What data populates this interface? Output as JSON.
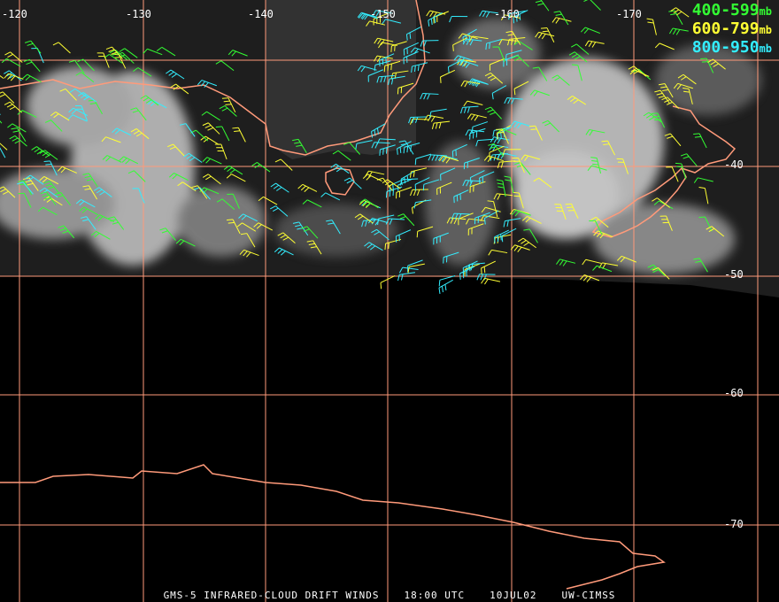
{
  "colors": {
    "grid": "#ff9a7a",
    "coast": "#ff9a7a",
    "cloud": "#d8d8d8",
    "background": "#000000",
    "level_400_599": "#33ff33",
    "level_600_799": "#ffff33",
    "level_800_950": "#33eeff"
  },
  "legend": {
    "items": [
      {
        "label": "400-599",
        "unit": "mb",
        "color": "#33ff33"
      },
      {
        "label": "600-799",
        "unit": "mb",
        "color": "#ffff33"
      },
      {
        "label": "800-950",
        "unit": "mb",
        "color": "#33eeff"
      }
    ]
  },
  "longitude_labels": [
    "-120",
    "-130",
    "-140",
    "-150",
    "-160",
    "-170"
  ],
  "latitude_labels": [
    "-40",
    "-50",
    "-60",
    "-70"
  ],
  "caption": {
    "product": "GMS-5 INFRARED-CLOUD DRIFT WINDS",
    "time": "18:00 UTC",
    "date": "10JUL02",
    "source": "UW-CIMSS"
  },
  "icons": [
    "wind-barb-icon"
  ]
}
